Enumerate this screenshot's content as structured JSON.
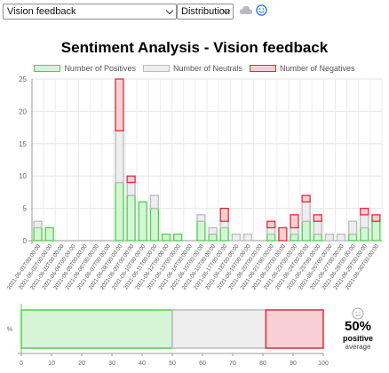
{
  "toolbar": {
    "feedback_select": "Vision feedback",
    "view_select": "Distribution",
    "icons": [
      "cloud-icon",
      "smiley-icon"
    ]
  },
  "colors": {
    "positive_fill": "#d6f5d6",
    "positive_border": "#4cd14c",
    "neutral_fill": "#eeeeee",
    "neutral_border": "#bbbbbb",
    "negative_fill": "#f8d0d3",
    "negative_border": "#d92e3a"
  },
  "average": {
    "percent": "50%",
    "word": "positive",
    "caption": "average"
  },
  "chart_data": [
    {
      "type": "bar",
      "stacked": true,
      "title": "Sentiment Analysis - Vision feedback",
      "legend_position": "top",
      "grid": true,
      "ylim": [
        0,
        25
      ],
      "yticks": [
        0,
        5,
        10,
        15,
        20,
        25
      ],
      "categories": [
        "2021-06-01T00:00:00",
        "2021-06-02T00:00:00",
        "2021-06-03T00:00:00",
        "2021-06-04T00:00:00",
        "2021-06-05T00:00:00",
        "2021-06-06T00:00:00",
        "2021-06-07T00:00:00",
        "2021-06-08T00:00:00",
        "2021-06-09T00:00:00",
        "2021-06-10T00:00:00",
        "2021-06-11T00:00:00",
        "2021-06-12T00:00:00",
        "2021-06-13T00:00:00",
        "2021-06-14T00:00:00",
        "2021-06-15T00:00:00",
        "2021-06-16T00:00:00",
        "2021-06-17T00:00:00",
        "2021-06-18T00:00:00",
        "2021-06-19T00:00:00",
        "2021-06-20T00:00:00",
        "2021-06-21T00:00:00",
        "2021-06-22T00:00:00",
        "2021-06-23T00:00:00",
        "2021-06-24T00:00:00",
        "2021-06-25T00:00:00",
        "2021-06-26T00:00:00",
        "2021-06-27T00:00:00",
        "2021-06-28T00:00:00",
        "2021-06-29T00:00:00",
        "2021-06-30T00:00:00"
      ],
      "series": [
        {
          "name": "Number of Positives",
          "values": [
            2,
            2,
            0,
            0,
            0,
            0,
            0,
            9,
            7,
            6,
            5,
            1,
            1,
            0,
            3,
            1,
            2,
            0,
            0,
            0,
            1,
            0,
            1,
            3,
            1,
            0,
            0,
            1,
            2,
            3
          ]
        },
        {
          "name": "Number of Neutrals",
          "values": [
            1,
            0,
            0,
            0,
            0,
            0,
            0,
            8,
            2,
            0,
            2,
            0,
            0,
            0,
            1,
            1,
            1,
            1,
            1,
            0,
            1,
            0,
            1,
            3,
            2,
            1,
            1,
            2,
            2,
            0
          ]
        },
        {
          "name": "Number of Negatives",
          "values": [
            0,
            0,
            0,
            0,
            0,
            0,
            0,
            8,
            1,
            0,
            0,
            0,
            0,
            0,
            0,
            0,
            2,
            0,
            0,
            0,
            1,
            2,
            2,
            1,
            1,
            0,
            0,
            0,
            1,
            1
          ]
        }
      ]
    },
    {
      "type": "bar",
      "orientation": "horizontal",
      "stacked": true,
      "ylabel": "%",
      "xlim": [
        0,
        100
      ],
      "xticks": [
        0,
        10,
        20,
        30,
        40,
        50,
        60,
        70,
        80,
        90,
        100
      ],
      "series": [
        {
          "name": "Number of Positives",
          "values": [
            50
          ]
        },
        {
          "name": "Number of Neutrals",
          "values": [
            31
          ]
        },
        {
          "name": "Number of Negatives",
          "values": [
            19
          ]
        }
      ]
    }
  ]
}
